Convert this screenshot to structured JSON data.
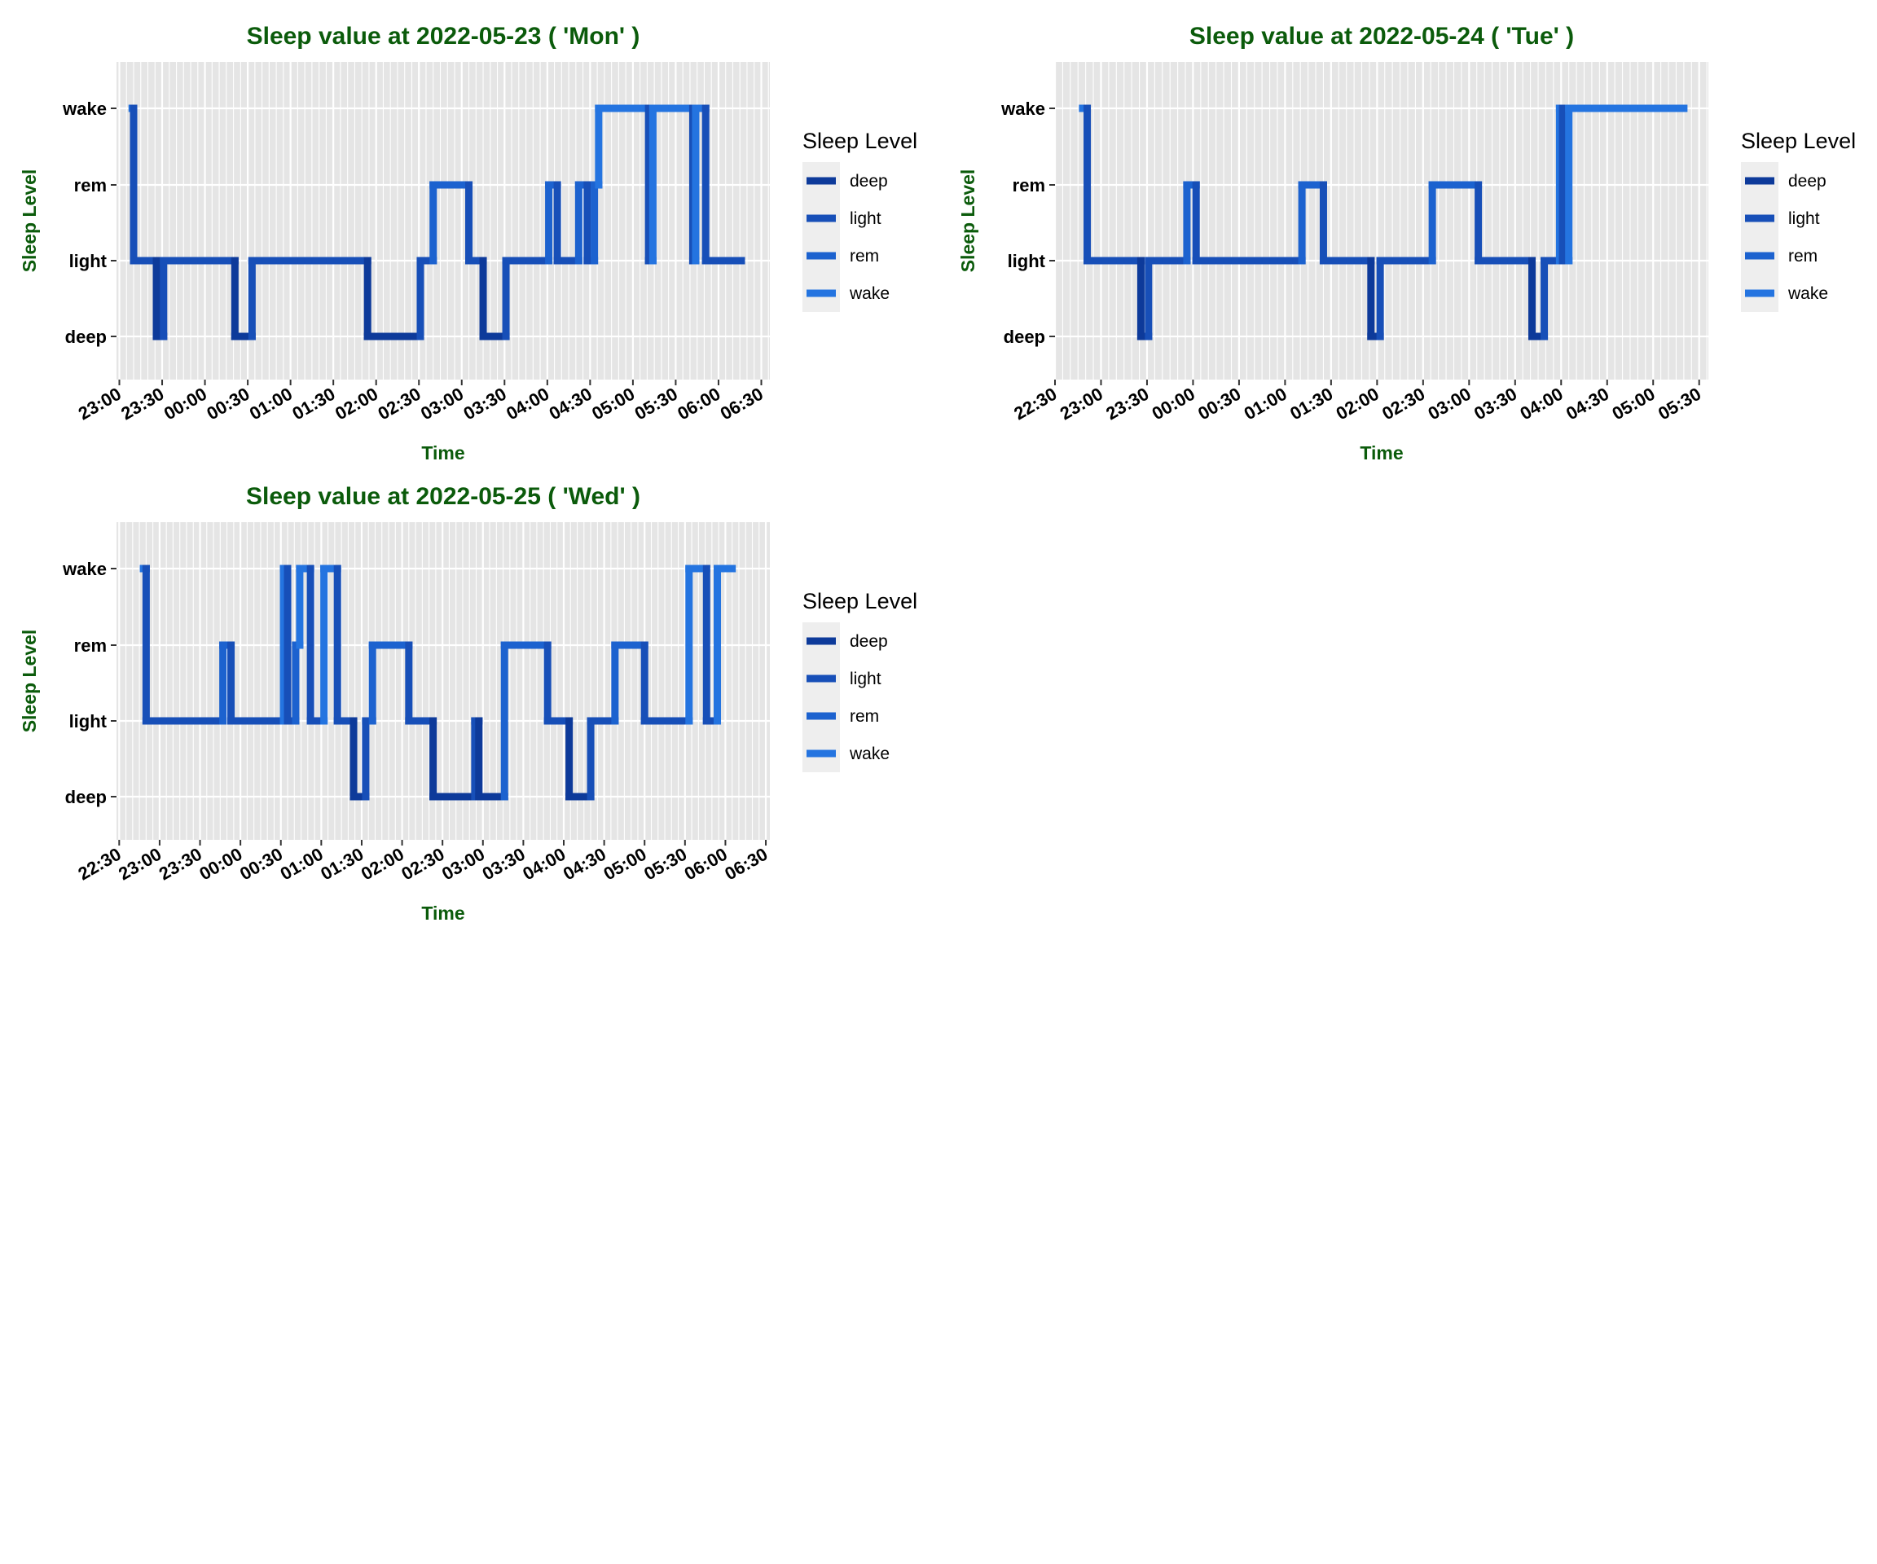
{
  "level_labels": [
    "deep",
    "light",
    "rem",
    "wake"
  ],
  "colors": {
    "title": "#0b5b0b",
    "panel_bg": "#e5e5e5",
    "grid": "#ffffff",
    "legend_key_bg": "#eeeeee",
    "deep": "#0d3a9a",
    "light": "#174fb8",
    "rem": "#1c62cf",
    "wake": "#2474e0"
  },
  "chart_data": [
    {
      "type": "line",
      "title": "Sleep value at 2022-05-23 ( 'Mon' )",
      "xlabel": "Time",
      "ylabel": "Sleep Level",
      "legend_title": "Sleep Level",
      "legend": [
        "deep",
        "light",
        "rem",
        "wake"
      ],
      "legend_position": "right",
      "grid": true,
      "xlim": [
        "22:58",
        "06:36"
      ],
      "ylim": [
        "deep",
        "wake"
      ],
      "x_ticks": [
        "23:00",
        "23:30",
        "00:00",
        "00:30",
        "01:00",
        "01:30",
        "02:00",
        "02:30",
        "03:00",
        "03:30",
        "04:00",
        "04:30",
        "05:00",
        "05:30",
        "06:00",
        "06:30"
      ],
      "segments": [
        {
          "start": "23:09",
          "end": "23:10",
          "level": "wake"
        },
        {
          "start": "23:10",
          "end": "23:26",
          "level": "light"
        },
        {
          "start": "23:26",
          "end": "23:31",
          "level": "deep"
        },
        {
          "start": "23:31",
          "end": "00:21",
          "level": "light"
        },
        {
          "start": "00:21",
          "end": "00:33",
          "level": "deep"
        },
        {
          "start": "00:33",
          "end": "01:54",
          "level": "light"
        },
        {
          "start": "01:54",
          "end": "02:31",
          "level": "deep"
        },
        {
          "start": "02:31",
          "end": "02:40",
          "level": "light"
        },
        {
          "start": "02:40",
          "end": "03:05",
          "level": "rem"
        },
        {
          "start": "03:05",
          "end": "03:15",
          "level": "light"
        },
        {
          "start": "03:15",
          "end": "03:31",
          "level": "deep"
        },
        {
          "start": "03:31",
          "end": "04:01",
          "level": "light"
        },
        {
          "start": "04:01",
          "end": "04:07",
          "level": "rem"
        },
        {
          "start": "04:07",
          "end": "04:22",
          "level": "light"
        },
        {
          "start": "04:22",
          "end": "04:28",
          "level": "rem"
        },
        {
          "start": "04:28",
          "end": "04:33",
          "level": "light"
        },
        {
          "start": "04:33",
          "end": "04:36",
          "level": "rem"
        },
        {
          "start": "04:36",
          "end": "05:11",
          "level": "wake"
        },
        {
          "start": "05:11",
          "end": "05:14",
          "level": "light"
        },
        {
          "start": "05:14",
          "end": "05:42",
          "level": "wake"
        },
        {
          "start": "05:42",
          "end": "05:44",
          "level": "light"
        },
        {
          "start": "05:44",
          "end": "05:51",
          "level": "wake"
        },
        {
          "start": "05:51",
          "end": "06:16",
          "level": "light"
        }
      ]
    },
    {
      "type": "line",
      "title": "Sleep value at 2022-05-24 ( 'Tue' )",
      "xlabel": "Time",
      "ylabel": "Sleep Level",
      "legend_title": "Sleep Level",
      "legend": [
        "deep",
        "light",
        "rem",
        "wake"
      ],
      "legend_position": "right",
      "grid": true,
      "xlim": [
        "22:30",
        "05:36"
      ],
      "ylim": [
        "deep",
        "wake"
      ],
      "x_ticks": [
        "22:30",
        "23:00",
        "23:30",
        "00:00",
        "00:30",
        "01:00",
        "01:30",
        "02:00",
        "02:30",
        "03:00",
        "03:30",
        "04:00",
        "04:30",
        "05:00",
        "05:30"
      ],
      "segments": [
        {
          "start": "22:48",
          "end": "22:51",
          "level": "wake"
        },
        {
          "start": "22:51",
          "end": "23:26",
          "level": "light"
        },
        {
          "start": "23:26",
          "end": "23:31",
          "level": "deep"
        },
        {
          "start": "23:31",
          "end": "23:56",
          "level": "light"
        },
        {
          "start": "23:56",
          "end": "00:02",
          "level": "rem"
        },
        {
          "start": "00:02",
          "end": "01:11",
          "level": "light"
        },
        {
          "start": "01:11",
          "end": "01:25",
          "level": "rem"
        },
        {
          "start": "01:25",
          "end": "01:56",
          "level": "light"
        },
        {
          "start": "01:56",
          "end": "02:02",
          "level": "deep"
        },
        {
          "start": "02:02",
          "end": "02:36",
          "level": "light"
        },
        {
          "start": "02:36",
          "end": "03:06",
          "level": "rem"
        },
        {
          "start": "03:06",
          "end": "03:41",
          "level": "light"
        },
        {
          "start": "03:41",
          "end": "03:49",
          "level": "deep"
        },
        {
          "start": "03:49",
          "end": "03:59",
          "level": "light"
        },
        {
          "start": "03:59",
          "end": "04:01",
          "level": "wake"
        },
        {
          "start": "04:01",
          "end": "04:05",
          "level": "light"
        },
        {
          "start": "04:05",
          "end": "05:20",
          "level": "wake"
        }
      ]
    },
    {
      "type": "line",
      "title": "Sleep value at 2022-05-25 ( 'Wed' )",
      "xlabel": "Time",
      "ylabel": "Sleep Level",
      "legend_title": "Sleep Level",
      "legend": [
        "deep",
        "light",
        "rem",
        "wake"
      ],
      "legend_position": "right",
      "grid": true,
      "xlim": [
        "22:28",
        "06:33"
      ],
      "ylim": [
        "deep",
        "wake"
      ],
      "x_ticks": [
        "22:30",
        "23:00",
        "23:30",
        "00:00",
        "00:30",
        "01:00",
        "01:30",
        "02:00",
        "02:30",
        "03:00",
        "03:30",
        "04:00",
        "04:30",
        "05:00",
        "05:30",
        "06:00",
        "06:30"
      ],
      "segments": [
        {
          "start": "22:48",
          "end": "22:50",
          "level": "wake"
        },
        {
          "start": "22:50",
          "end": "23:47",
          "level": "light"
        },
        {
          "start": "23:47",
          "end": "23:53",
          "level": "rem"
        },
        {
          "start": "23:53",
          "end": "00:32",
          "level": "light"
        },
        {
          "start": "00:32",
          "end": "00:35",
          "level": "wake"
        },
        {
          "start": "00:35",
          "end": "00:41",
          "level": "light"
        },
        {
          "start": "00:41",
          "end": "00:44",
          "level": "rem"
        },
        {
          "start": "00:44",
          "end": "00:52",
          "level": "wake"
        },
        {
          "start": "00:52",
          "end": "01:02",
          "level": "light"
        },
        {
          "start": "01:02",
          "end": "01:12",
          "level": "wake"
        },
        {
          "start": "01:12",
          "end": "01:24",
          "level": "light"
        },
        {
          "start": "01:24",
          "end": "01:33",
          "level": "deep"
        },
        {
          "start": "01:33",
          "end": "01:38",
          "level": "light"
        },
        {
          "start": "01:38",
          "end": "02:05",
          "level": "rem"
        },
        {
          "start": "02:05",
          "end": "02:23",
          "level": "light"
        },
        {
          "start": "02:23",
          "end": "02:54",
          "level": "deep"
        },
        {
          "start": "02:54",
          "end": "02:57",
          "level": "light"
        },
        {
          "start": "02:57",
          "end": "03:16",
          "level": "deep"
        },
        {
          "start": "03:16",
          "end": "03:48",
          "level": "rem"
        },
        {
          "start": "03:48",
          "end": "04:04",
          "level": "light"
        },
        {
          "start": "04:04",
          "end": "04:20",
          "level": "deep"
        },
        {
          "start": "04:20",
          "end": "04:38",
          "level": "light"
        },
        {
          "start": "04:38",
          "end": "05:00",
          "level": "rem"
        },
        {
          "start": "05:00",
          "end": "05:33",
          "level": "light"
        },
        {
          "start": "05:33",
          "end": "05:46",
          "level": "wake"
        },
        {
          "start": "05:46",
          "end": "05:54",
          "level": "light"
        },
        {
          "start": "05:54",
          "end": "06:05",
          "level": "wake"
        }
      ]
    }
  ]
}
